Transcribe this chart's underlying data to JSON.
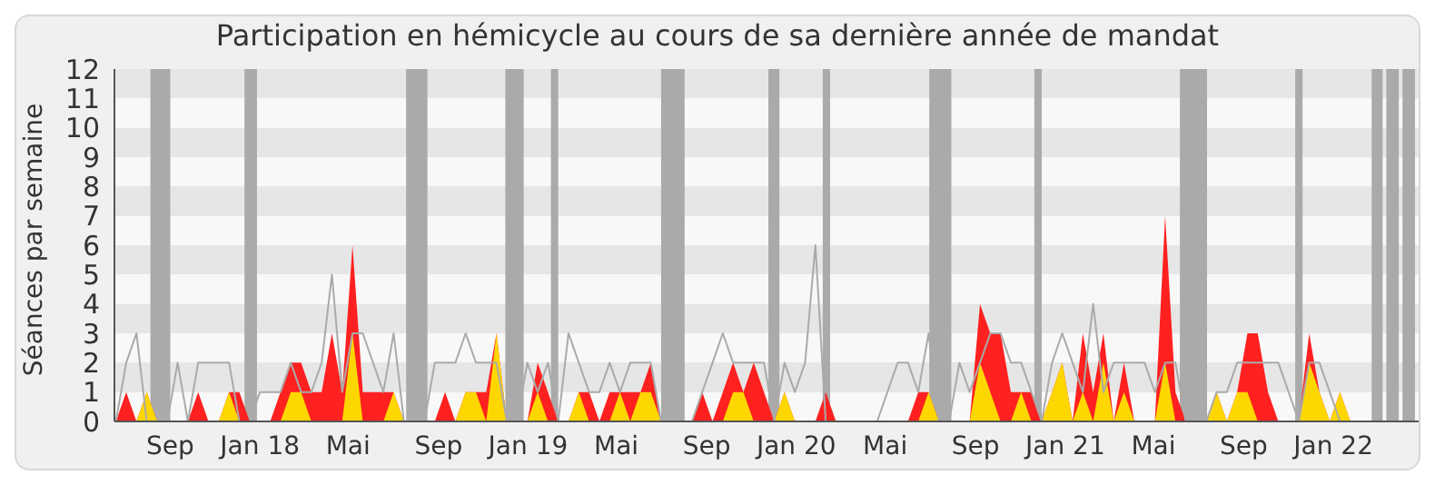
{
  "chart_data": {
    "type": "area",
    "title": "Participation en hémicycle au cours de sa dernière année de mandat",
    "ylabel": "Séances par semaine",
    "x": [
      "2017-06-19",
      "2017-07-03",
      "2017-07-17",
      "2017-07-31",
      "2017-08-14",
      "2017-08-28",
      "2017-09-11",
      "2017-09-25",
      "2017-10-09",
      "2017-10-23",
      "2017-11-06",
      "2017-11-20",
      "2017-12-04",
      "2017-12-18",
      "2018-01-01",
      "2018-01-15",
      "2018-01-29",
      "2018-02-12",
      "2018-02-26",
      "2018-03-12",
      "2018-03-26",
      "2018-04-09",
      "2018-04-23",
      "2018-05-07",
      "2018-05-21",
      "2018-06-04",
      "2018-06-18",
      "2018-07-02",
      "2018-07-16",
      "2018-07-30",
      "2018-08-13",
      "2018-08-27",
      "2018-09-10",
      "2018-09-24",
      "2018-10-08",
      "2018-10-22",
      "2018-11-05",
      "2018-11-19",
      "2018-12-03",
      "2018-12-17",
      "2018-12-31",
      "2019-01-14",
      "2019-01-28",
      "2019-02-11",
      "2019-02-25",
      "2019-03-11",
      "2019-03-25",
      "2019-04-08",
      "2019-04-22",
      "2019-05-06",
      "2019-05-20",
      "2019-06-03",
      "2019-06-17",
      "2019-07-01",
      "2019-07-15",
      "2019-07-29",
      "2019-08-12",
      "2019-08-26",
      "2019-09-09",
      "2019-09-23",
      "2019-10-07",
      "2019-10-21",
      "2019-11-04",
      "2019-11-18",
      "2019-12-02",
      "2019-12-16",
      "2019-12-30",
      "2020-01-13",
      "2020-01-27",
      "2020-02-10",
      "2020-02-24",
      "2020-03-09",
      "2020-03-23",
      "2020-04-06",
      "2020-04-20",
      "2020-05-04",
      "2020-05-18",
      "2020-06-01",
      "2020-06-15",
      "2020-06-29",
      "2020-07-13",
      "2020-07-27",
      "2020-08-10",
      "2020-08-24",
      "2020-09-07",
      "2020-09-21",
      "2020-10-05",
      "2020-10-19",
      "2020-11-02",
      "2020-11-16",
      "2020-11-30",
      "2020-12-14",
      "2020-12-28",
      "2021-01-11",
      "2021-01-25",
      "2021-02-08",
      "2021-02-22",
      "2021-03-08",
      "2021-03-22",
      "2021-04-05",
      "2021-04-19",
      "2021-05-03",
      "2021-05-17",
      "2021-05-31",
      "2021-06-14",
      "2021-06-28",
      "2021-07-12",
      "2021-07-26",
      "2021-08-09",
      "2021-08-23",
      "2021-09-06",
      "2021-09-20",
      "2021-10-04",
      "2021-10-18",
      "2021-11-01",
      "2021-11-15",
      "2021-11-29",
      "2021-12-13",
      "2021-12-27",
      "2022-01-10",
      "2022-01-24",
      "2022-02-07",
      "2022-02-21",
      "2022-03-07",
      "2022-03-21",
      "2022-04-04",
      "2022-04-18"
    ],
    "series": [
      {
        "type": "line",
        "color": "#aaaaaa",
        "values": [
          0,
          2,
          3,
          0,
          0,
          0,
          2,
          0,
          2,
          2,
          2,
          2,
          0,
          0,
          1,
          1,
          1,
          2,
          1,
          1,
          2,
          5,
          1,
          3,
          3,
          2,
          1,
          3,
          0,
          0,
          0,
          2,
          2,
          2,
          3,
          2,
          2,
          2,
          0,
          0,
          2,
          1,
          2,
          0,
          3,
          2,
          1,
          1,
          2,
          1,
          2,
          2,
          2,
          0,
          0,
          0,
          0,
          1,
          2,
          3,
          2,
          2,
          2,
          2,
          0,
          2,
          1,
          2,
          6,
          0,
          0,
          0,
          0,
          0,
          0,
          1,
          2,
          2,
          1,
          3,
          0,
          0,
          2,
          1,
          2,
          3,
          3,
          2,
          2,
          1,
          0,
          2,
          3,
          2,
          1,
          4,
          1,
          2,
          2,
          2,
          2,
          1,
          2,
          2,
          0,
          0,
          0,
          1,
          1,
          2,
          2,
          2,
          2,
          2,
          1,
          0,
          2,
          2,
          1,
          0,
          0,
          0,
          0,
          0,
          0,
          0,
          0
        ]
      },
      {
        "color": "#ff2020",
        "values": [
          0,
          1,
          0,
          1,
          0,
          0,
          0,
          0,
          1,
          0,
          0,
          1,
          1,
          0,
          0,
          0,
          1,
          2,
          2,
          1,
          1,
          3,
          1,
          6,
          1,
          1,
          1,
          1,
          0,
          0,
          0,
          0,
          1,
          0,
          1,
          1,
          1,
          3,
          0,
          0,
          0,
          2,
          1,
          0,
          0,
          1,
          1,
          0,
          1,
          1,
          1,
          1,
          2,
          0,
          0,
          0,
          0,
          1,
          0,
          1,
          2,
          1,
          2,
          1,
          0,
          1,
          0,
          0,
          0,
          1,
          0,
          0,
          0,
          0,
          0,
          0,
          0,
          0,
          1,
          1,
          0,
          0,
          0,
          0,
          4,
          3,
          3,
          1,
          1,
          1,
          0,
          1,
          2,
          0,
          3,
          1,
          3,
          0,
          2,
          0,
          0,
          0,
          7,
          1,
          0,
          0,
          0,
          1,
          0,
          1,
          3,
          3,
          1,
          0,
          0,
          0,
          3,
          1,
          0,
          1,
          0,
          0,
          0,
          0,
          0,
          0,
          0
        ]
      },
      {
        "color": "#ffd700",
        "values": [
          0,
          0,
          0,
          1,
          0,
          0,
          0,
          0,
          0,
          0,
          0,
          1,
          0,
          0,
          0,
          0,
          0,
          1,
          1,
          0,
          0,
          0,
          0,
          3,
          0,
          0,
          0,
          1,
          0,
          0,
          0,
          0,
          0,
          0,
          1,
          1,
          0,
          3,
          0,
          0,
          0,
          1,
          0,
          0,
          0,
          1,
          0,
          0,
          0,
          1,
          0,
          1,
          1,
          0,
          0,
          0,
          0,
          0,
          0,
          0,
          1,
          1,
          0,
          0,
          0,
          1,
          0,
          0,
          0,
          0,
          0,
          0,
          0,
          0,
          0,
          0,
          0,
          0,
          0,
          1,
          0,
          0,
          0,
          0,
          2,
          1,
          0,
          0,
          1,
          0,
          0,
          1,
          2,
          0,
          1,
          0,
          2,
          0,
          1,
          0,
          0,
          0,
          2,
          0,
          0,
          0,
          0,
          1,
          0,
          1,
          1,
          0,
          0,
          0,
          0,
          0,
          2,
          1,
          0,
          1,
          0,
          0,
          0,
          0,
          0,
          0,
          0
        ]
      }
    ],
    "xlim": [
      "2017-06-17",
      "2022-04-27"
    ],
    "xticks": [
      {
        "value": "2017-09-01",
        "label": "Sep"
      },
      {
        "value": "2018-01-01",
        "label": "Jan 18"
      },
      {
        "value": "2018-05-01",
        "label": "Mai"
      },
      {
        "value": "2018-09-01",
        "label": "Sep"
      },
      {
        "value": "2019-01-01",
        "label": "Jan 19"
      },
      {
        "value": "2019-05-01",
        "label": "Mai"
      },
      {
        "value": "2019-09-01",
        "label": "Sep"
      },
      {
        "value": "2020-01-01",
        "label": "Jan 20"
      },
      {
        "value": "2020-05-01",
        "label": "Mai"
      },
      {
        "value": "2020-09-01",
        "label": "Sep"
      },
      {
        "value": "2021-01-01",
        "label": "Jan 21"
      },
      {
        "value": "2021-05-01",
        "label": "Mai"
      },
      {
        "value": "2021-09-01",
        "label": "Sep"
      },
      {
        "value": "2022-01-01",
        "label": "Jan 22"
      }
    ],
    "ylim": [
      0,
      12
    ],
    "yticks": [
      0,
      1,
      2,
      3,
      4,
      5,
      6,
      7,
      8,
      9,
      10,
      11,
      12
    ],
    "bands": [
      {
        "axis": "x",
        "from": "2017-08-05",
        "to": "2017-09-01",
        "color": "#aaaaaa"
      },
      {
        "axis": "x",
        "from": "2017-12-11",
        "to": "2017-12-28",
        "color": "#aaaaaa"
      },
      {
        "axis": "x",
        "from": "2018-07-19",
        "to": "2018-08-17",
        "color": "#aaaaaa"
      },
      {
        "axis": "x",
        "from": "2018-12-01",
        "to": "2018-12-26",
        "color": "#aaaaaa"
      },
      {
        "axis": "x",
        "from": "2019-02-01",
        "to": "2019-02-11",
        "color": "#aaaaaa"
      },
      {
        "axis": "x",
        "from": "2019-07-01",
        "to": "2019-08-02",
        "color": "#aaaaaa"
      },
      {
        "axis": "x",
        "from": "2019-11-24",
        "to": "2019-12-09",
        "color": "#aaaaaa"
      },
      {
        "axis": "x",
        "from": "2020-02-06",
        "to": "2020-02-16",
        "color": "#aaaaaa"
      },
      {
        "axis": "x",
        "from": "2020-06-30",
        "to": "2020-07-30",
        "color": "#aaaaaa"
      },
      {
        "axis": "x",
        "from": "2020-11-20",
        "to": "2020-11-30",
        "color": "#aaaaaa"
      },
      {
        "axis": "x",
        "from": "2021-06-06",
        "to": "2021-07-13",
        "color": "#aaaaaa"
      },
      {
        "axis": "x",
        "from": "2021-11-10",
        "to": "2021-11-20",
        "color": "#aaaaaa"
      },
      {
        "axis": "x",
        "from": "2022-02-22",
        "to": "2022-03-09",
        "color": "#aaaaaa"
      },
      {
        "axis": "x",
        "from": "2022-03-14",
        "to": "2022-03-31",
        "color": "#aaaaaa"
      },
      {
        "axis": "x",
        "from": "2022-04-05",
        "to": "2022-04-22",
        "color": "#aaaaaa"
      }
    ]
  }
}
